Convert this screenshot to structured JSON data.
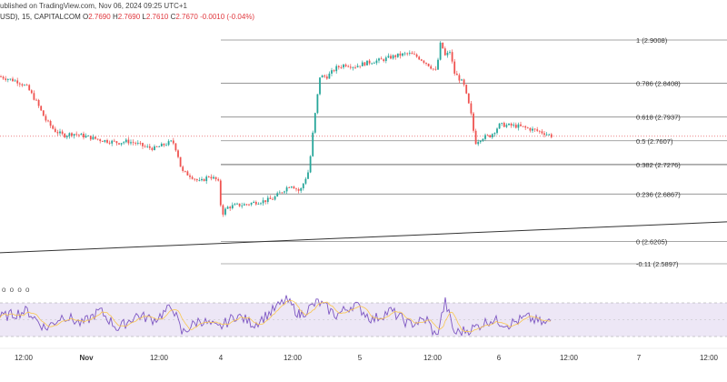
{
  "header": {
    "published": "ublished on TradingView.com, Nov 06, 2024 09:25 UTC+1",
    "symbol": "USD), 15, CAPITALCOM",
    "o_label": "O",
    "o": "2.7690",
    "h_label": "H",
    "h": "2.7690",
    "l_label": "L",
    "l": "2.7610",
    "c_label": "C",
    "c": "2.7670",
    "change": "-0.0010 (-0.04%)"
  },
  "indicator_label": "o o o o",
  "chart_data": {
    "type": "candlestick",
    "price_ylim": [
      2.575,
      2.915
    ],
    "fib_levels": [
      {
        "label": "1 (2.9008)",
        "price": 2.9008
      },
      {
        "label": "0.786 (2.8408)",
        "price": 2.8408
      },
      {
        "label": "0.618 (2.7937)",
        "price": 2.7937
      },
      {
        "label": "0.5 (2.7607)",
        "price": 2.7607
      },
      {
        "label": "0.382 (2.7276)",
        "price": 2.7276
      },
      {
        "label": "0.236 (2.6867)",
        "price": 2.6867
      },
      {
        "label": "0 (2.6205)",
        "price": 2.6205
      },
      {
        "label": "-0.11 (2.5897)",
        "price": 2.5897
      }
    ],
    "current_price": 2.767,
    "x_ticks": [
      "12:00",
      "Nov",
      "12:00",
      "4",
      "12:00",
      "5",
      "12:00",
      "6",
      "12:00",
      "7",
      "12:00"
    ],
    "trendline_price": [
      2.605,
      2.648
    ],
    "price_path": [
      [
        0,
        2.85
      ],
      [
        20,
        2.843
      ],
      [
        30,
        2.835
      ],
      [
        40,
        2.815
      ],
      [
        50,
        2.79
      ],
      [
        60,
        2.775
      ],
      [
        70,
        2.768
      ],
      [
        80,
        2.771
      ],
      [
        90,
        2.768
      ],
      [
        100,
        2.765
      ],
      [
        110,
        2.762
      ],
      [
        120,
        2.76
      ],
      [
        130,
        2.758
      ],
      [
        140,
        2.76
      ],
      [
        150,
        2.757
      ],
      [
        160,
        2.752
      ],
      [
        170,
        2.75
      ],
      [
        180,
        2.755
      ],
      [
        190,
        2.76
      ],
      [
        195,
        2.745
      ],
      [
        200,
        2.718
      ],
      [
        210,
        2.712
      ],
      [
        220,
        2.703
      ],
      [
        230,
        2.712
      ],
      [
        240,
        2.705
      ],
      [
        244,
        2.658
      ],
      [
        250,
        2.668
      ],
      [
        260,
        2.671
      ],
      [
        270,
        2.672
      ],
      [
        280,
        2.675
      ],
      [
        290,
        2.677
      ],
      [
        300,
        2.68
      ],
      [
        310,
        2.69
      ],
      [
        320,
        2.7
      ],
      [
        330,
        2.69
      ],
      [
        340,
        2.72
      ],
      [
        345,
        2.78
      ],
      [
        352,
        2.85
      ],
      [
        360,
        2.85
      ],
      [
        370,
        2.862
      ],
      [
        380,
        2.867
      ],
      [
        390,
        2.864
      ],
      [
        400,
        2.868
      ],
      [
        410,
        2.871
      ],
      [
        420,
        2.873
      ],
      [
        430,
        2.877
      ],
      [
        440,
        2.88
      ],
      [
        450,
        2.882
      ],
      [
        460,
        2.877
      ],
      [
        470,
        2.868
      ],
      [
        480,
        2.857
      ],
      [
        485,
        2.898
      ],
      [
        490,
        2.878
      ],
      [
        495,
        2.885
      ],
      [
        500,
        2.855
      ],
      [
        510,
        2.84
      ],
      [
        518,
        2.8
      ],
      [
        523,
        2.758
      ],
      [
        530,
        2.765
      ],
      [
        540,
        2.768
      ],
      [
        550,
        2.783
      ],
      [
        560,
        2.782
      ],
      [
        570,
        2.781
      ],
      [
        580,
        2.778
      ],
      [
        590,
        2.775
      ],
      [
        600,
        2.771
      ],
      [
        608,
        2.767
      ]
    ],
    "rsi_path": [
      [
        0,
        0.55
      ],
      [
        30,
        0.7
      ],
      [
        50,
        0.3
      ],
      [
        70,
        0.6
      ],
      [
        90,
        0.4
      ],
      [
        110,
        0.7
      ],
      [
        130,
        0.3
      ],
      [
        150,
        0.6
      ],
      [
        170,
        0.5
      ],
      [
        190,
        0.8
      ],
      [
        200,
        0.2
      ],
      [
        220,
        0.5
      ],
      [
        240,
        0.3
      ],
      [
        260,
        0.6
      ],
      [
        280,
        0.4
      ],
      [
        300,
        0.7
      ],
      [
        315,
        0.95
      ],
      [
        330,
        0.6
      ],
      [
        350,
        0.9
      ],
      [
        370,
        0.6
      ],
      [
        390,
        0.85
      ],
      [
        410,
        0.5
      ],
      [
        430,
        0.7
      ],
      [
        450,
        0.4
      ],
      [
        470,
        0.5
      ],
      [
        480,
        0.1
      ],
      [
        490,
        0.9
      ],
      [
        500,
        0.2
      ],
      [
        520,
        0.3
      ],
      [
        540,
        0.5
      ],
      [
        560,
        0.4
      ],
      [
        580,
        0.55
      ],
      [
        600,
        0.4
      ],
      [
        608,
        0.5
      ]
    ]
  }
}
